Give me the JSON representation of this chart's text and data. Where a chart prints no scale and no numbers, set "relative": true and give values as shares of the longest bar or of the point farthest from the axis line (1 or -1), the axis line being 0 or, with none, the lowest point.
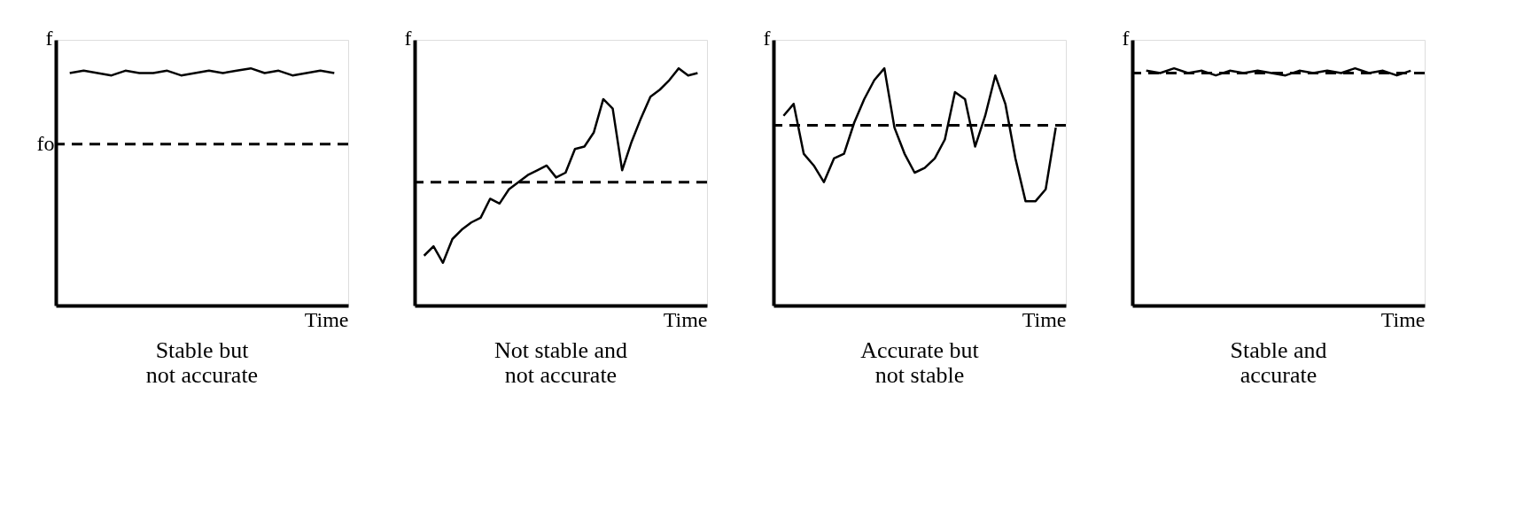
{
  "chart_data": [
    {
      "type": "line",
      "relative": true,
      "title": "Stable but\nnot accurate",
      "ylabel": "f",
      "xlabel": "Time",
      "color": "#000000",
      "categories": [
        null,
        null,
        null,
        null,
        null,
        null,
        null,
        null,
        null,
        null,
        null,
        null,
        null,
        null,
        null,
        null,
        null,
        null,
        null,
        null
      ],
      "values": [
        0.98,
        0.99,
        0.98,
        0.97,
        0.99,
        0.98,
        0.98,
        0.99,
        0.97,
        0.98,
        0.99,
        0.98,
        0.99,
        1.0,
        0.98,
        0.99,
        0.97,
        0.98,
        0.99,
        0.98
      ],
      "ref_lines": [
        {
          "axis": "y",
          "value": 0.68,
          "label": "fo",
          "line_style": "dashed"
        }
      ]
    },
    {
      "type": "line",
      "relative": true,
      "title": "Not stable and\nnot accurate",
      "ylabel": "f",
      "xlabel": "Time",
      "color": "#000000",
      "categories": [
        null,
        null,
        null,
        null,
        null,
        null,
        null,
        null,
        null,
        null,
        null,
        null,
        null,
        null,
        null,
        null,
        null,
        null,
        null,
        null,
        null,
        null,
        null,
        null,
        null,
        null,
        null,
        null,
        null,
        null
      ],
      "values": [
        0.21,
        0.25,
        0.18,
        0.28,
        0.32,
        0.35,
        0.37,
        0.45,
        0.43,
        0.49,
        0.52,
        0.55,
        0.57,
        0.59,
        0.54,
        0.56,
        0.66,
        0.67,
        0.73,
        0.87,
        0.83,
        0.57,
        0.69,
        0.79,
        0.88,
        0.91,
        0.95,
        1.0,
        0.97,
        0.98
      ],
      "ref_lines": [
        {
          "axis": "y",
          "value": 0.52,
          "line_style": "dashed"
        }
      ]
    },
    {
      "type": "line",
      "relative": true,
      "title": "Accurate but\nnot stable",
      "ylabel": "f",
      "xlabel": "Time",
      "color": "#000000",
      "categories": [
        null,
        null,
        null,
        null,
        null,
        null,
        null,
        null,
        null,
        null,
        null,
        null,
        null,
        null,
        null,
        null,
        null,
        null,
        null,
        null,
        null,
        null,
        null,
        null,
        null,
        null,
        null,
        null
      ],
      "values": [
        0.8,
        0.85,
        0.64,
        0.59,
        0.52,
        0.62,
        0.64,
        0.77,
        0.87,
        0.95,
        1.0,
        0.75,
        0.64,
        0.56,
        0.58,
        0.62,
        0.7,
        0.9,
        0.87,
        0.67,
        0.8,
        0.97,
        0.85,
        0.62,
        0.44,
        0.44,
        0.49,
        0.75
      ],
      "ref_lines": [
        {
          "axis": "y",
          "value": 0.76,
          "line_style": "dashed"
        }
      ]
    },
    {
      "type": "line",
      "relative": true,
      "title": "Stable and\naccurate",
      "ylabel": "f",
      "xlabel": "Time",
      "color": "#000000",
      "categories": [
        null,
        null,
        null,
        null,
        null,
        null,
        null,
        null,
        null,
        null,
        null,
        null,
        null,
        null,
        null,
        null,
        null,
        null,
        null,
        null
      ],
      "values": [
        0.99,
        0.98,
        1.0,
        0.98,
        0.99,
        0.97,
        0.99,
        0.98,
        0.99,
        0.98,
        0.97,
        0.99,
        0.98,
        0.99,
        0.98,
        1.0,
        0.98,
        0.99,
        0.97,
        0.99
      ],
      "ref_lines": [
        {
          "axis": "y",
          "value": 0.98,
          "line_style": "dashed"
        }
      ]
    }
  ]
}
